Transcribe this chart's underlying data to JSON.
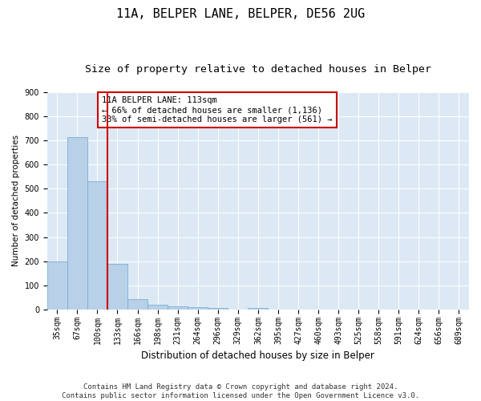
{
  "title": "11A, BELPER LANE, BELPER, DE56 2UG",
  "subtitle": "Size of property relative to detached houses in Belper",
  "xlabel": "Distribution of detached houses by size in Belper",
  "ylabel": "Number of detached properties",
  "bins": [
    "35sqm",
    "67sqm",
    "100sqm",
    "133sqm",
    "166sqm",
    "198sqm",
    "231sqm",
    "264sqm",
    "296sqm",
    "329sqm",
    "362sqm",
    "395sqm",
    "427sqm",
    "460sqm",
    "493sqm",
    "525sqm",
    "558sqm",
    "591sqm",
    "624sqm",
    "656sqm",
    "689sqm"
  ],
  "values": [
    200,
    715,
    530,
    190,
    42,
    20,
    12,
    10,
    7,
    0,
    7,
    0,
    0,
    0,
    0,
    0,
    0,
    0,
    0,
    0,
    0
  ],
  "bar_color": "#b8d0e8",
  "bar_edge_color": "#7aafd4",
  "property_line_color": "#cc0000",
  "annotation_line1": "11A BELPER LANE: 113sqm",
  "annotation_line2": "← 66% of detached houses are smaller (1,136)",
  "annotation_line3": "33% of semi-detached houses are larger (561) →",
  "annotation_box_color": "#cc0000",
  "ylim": [
    0,
    900
  ],
  "yticks": [
    0,
    100,
    200,
    300,
    400,
    500,
    600,
    700,
    800,
    900
  ],
  "plot_bg_color": "#dce9f5",
  "fig_bg_color": "#ffffff",
  "footer_text": "Contains HM Land Registry data © Crown copyright and database right 2024.\nContains public sector information licensed under the Open Government Licence v3.0.",
  "title_fontsize": 11,
  "subtitle_fontsize": 9.5,
  "xlabel_fontsize": 8.5,
  "ylabel_fontsize": 7.5,
  "tick_fontsize": 7,
  "annotation_fontsize": 7.5,
  "footer_fontsize": 6.5
}
